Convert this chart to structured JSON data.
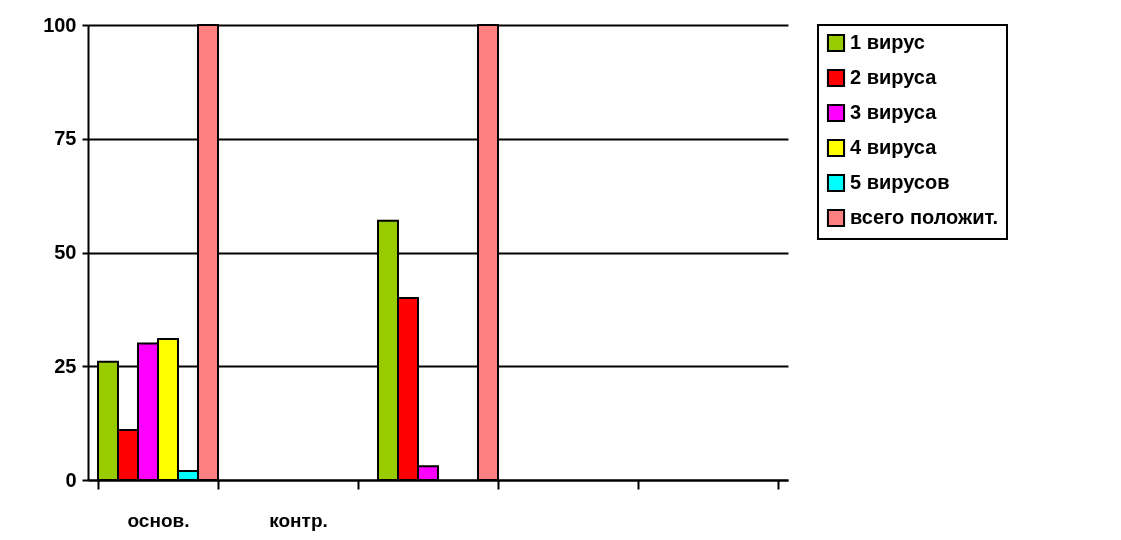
{
  "chart_data": {
    "type": "bar",
    "categories": [
      "основ.",
      "контр.",
      null,
      null,
      null
    ],
    "series": [
      {
        "name": "1 вирус",
        "color": "#99cc00",
        "values": [
          26,
          null,
          57,
          null,
          null
        ]
      },
      {
        "name": "2 вируса",
        "color": "#ff0000",
        "values": [
          11,
          null,
          40,
          null,
          null
        ]
      },
      {
        "name": "3 вируса",
        "color": "#ff00ff",
        "values": [
          30,
          null,
          3,
          null,
          null
        ]
      },
      {
        "name": "4 вируса",
        "color": "#ffff00",
        "values": [
          31,
          null,
          null,
          null,
          null
        ]
      },
      {
        "name": "5 вирусов",
        "color": "#00ffff",
        "values": [
          2,
          null,
          null,
          null,
          null
        ]
      },
      {
        "name": "всего положит.",
        "color": "#ff8080",
        "values": [
          100,
          null,
          100,
          null,
          null
        ]
      }
    ],
    "ylim": [
      0,
      100
    ],
    "yticks": [
      0,
      25,
      50,
      75,
      100
    ],
    "grid": "y",
    "legend": "top right"
  }
}
